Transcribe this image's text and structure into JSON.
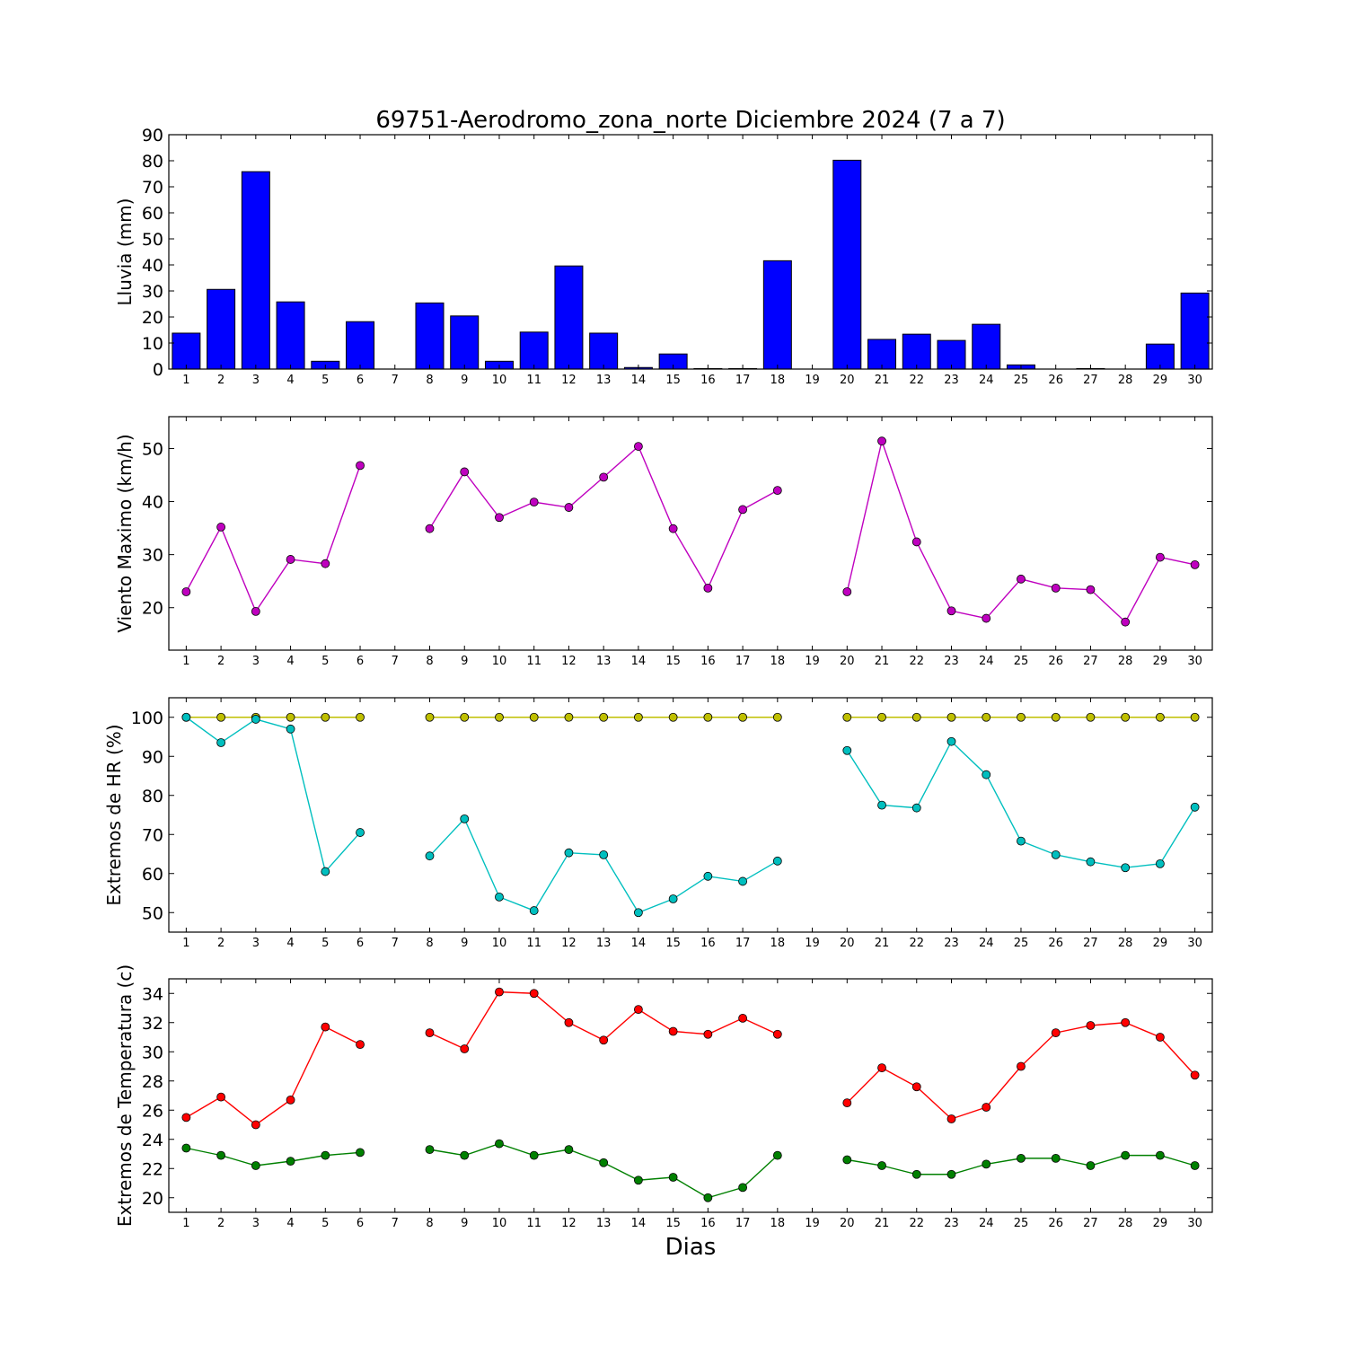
{
  "title": "69751-Aerodromo_zona_norte Diciembre 2024  (7 a 7)",
  "xlabel": "Dias",
  "chart_data": [
    {
      "type": "bar",
      "ylabel": "Lluvia (mm)",
      "ylim": [
        0,
        90
      ],
      "yticks": [
        0,
        10,
        20,
        30,
        40,
        50,
        60,
        70,
        80,
        90
      ],
      "x": [
        1,
        2,
        3,
        4,
        5,
        6,
        7,
        8,
        9,
        10,
        11,
        12,
        13,
        14,
        15,
        16,
        17,
        18,
        19,
        20,
        21,
        22,
        23,
        24,
        25,
        26,
        27,
        28,
        29,
        30
      ],
      "series": [
        {
          "color": "#0000ff",
          "values": [
            13.8,
            30.6,
            75.8,
            25.8,
            3.0,
            18.2,
            0,
            25.4,
            20.4,
            3.0,
            14.2,
            39.6,
            13.8,
            0.6,
            5.8,
            0.2,
            0.2,
            41.6,
            0,
            80.2,
            11.4,
            13.4,
            11.0,
            17.2,
            1.6,
            0,
            0.2,
            0,
            9.6,
            29.2
          ]
        }
      ]
    },
    {
      "type": "line",
      "ylabel": "Viento Maximo (km/h)",
      "ylim": [
        12,
        56
      ],
      "yticks": [
        20,
        30,
        40,
        50
      ],
      "x": [
        1,
        2,
        3,
        4,
        5,
        6,
        7,
        8,
        9,
        10,
        11,
        12,
        13,
        14,
        15,
        16,
        17,
        18,
        19,
        20,
        21,
        22,
        23,
        24,
        25,
        26,
        27,
        28,
        29,
        30
      ],
      "series": [
        {
          "color": "#bf00bf",
          "values": [
            23.0,
            35.2,
            19.3,
            29.1,
            28.3,
            46.8,
            null,
            34.9,
            45.6,
            37.0,
            39.9,
            38.9,
            44.6,
            50.4,
            34.9,
            23.7,
            38.5,
            42.1,
            null,
            23.0,
            51.4,
            32.4,
            19.4,
            18.0,
            25.4,
            23.7,
            23.4,
            17.3,
            29.5,
            28.1
          ]
        }
      ]
    },
    {
      "type": "line",
      "ylabel": "Extremos de HR (%)",
      "ylim": [
        45,
        105
      ],
      "yticks": [
        50,
        60,
        70,
        80,
        90,
        100
      ],
      "x": [
        1,
        2,
        3,
        4,
        5,
        6,
        7,
        8,
        9,
        10,
        11,
        12,
        13,
        14,
        15,
        16,
        17,
        18,
        19,
        20,
        21,
        22,
        23,
        24,
        25,
        26,
        27,
        28,
        29,
        30
      ],
      "series": [
        {
          "color": "#bfbf00",
          "values": [
            100,
            100,
            100,
            100,
            100,
            100,
            null,
            100,
            100,
            100,
            100,
            100,
            100,
            100,
            100,
            100,
            100,
            100,
            null,
            100,
            100,
            100,
            100,
            100,
            100,
            100,
            100,
            100,
            100,
            100
          ]
        },
        {
          "color": "#00bfbf",
          "values": [
            100,
            93.5,
            99.5,
            97,
            60.5,
            70.5,
            null,
            64.5,
            74,
            54,
            50.5,
            65.3,
            64.8,
            50,
            53.5,
            59.3,
            58,
            63.2,
            null,
            91.5,
            77.5,
            76.8,
            93.8,
            85.3,
            68.3,
            64.8,
            63,
            61.5,
            62.5,
            77
          ]
        }
      ]
    },
    {
      "type": "line",
      "ylabel": "Extremos de Temperatura (c)",
      "ylim": [
        19,
        35
      ],
      "yticks": [
        20,
        22,
        24,
        26,
        28,
        30,
        32,
        34
      ],
      "x": [
        1,
        2,
        3,
        4,
        5,
        6,
        7,
        8,
        9,
        10,
        11,
        12,
        13,
        14,
        15,
        16,
        17,
        18,
        19,
        20,
        21,
        22,
        23,
        24,
        25,
        26,
        27,
        28,
        29,
        30
      ],
      "series": [
        {
          "color": "#ff0000",
          "values": [
            25.5,
            26.9,
            25.0,
            26.7,
            31.7,
            30.5,
            null,
            31.3,
            30.2,
            34.1,
            34.0,
            32.0,
            30.8,
            32.9,
            31.4,
            31.2,
            32.3,
            31.2,
            null,
            26.5,
            28.9,
            27.6,
            25.4,
            26.2,
            29.0,
            31.3,
            31.8,
            32.0,
            31.0,
            28.4
          ]
        },
        {
          "color": "#008000",
          "values": [
            23.4,
            22.9,
            22.2,
            22.5,
            22.9,
            23.1,
            null,
            23.3,
            22.9,
            23.7,
            22.9,
            23.3,
            22.4,
            21.2,
            21.4,
            20.0,
            20.7,
            22.9,
            null,
            22.6,
            22.2,
            21.6,
            21.6,
            22.3,
            22.7,
            22.7,
            22.2,
            22.9,
            22.9,
            22.2
          ]
        }
      ]
    }
  ]
}
